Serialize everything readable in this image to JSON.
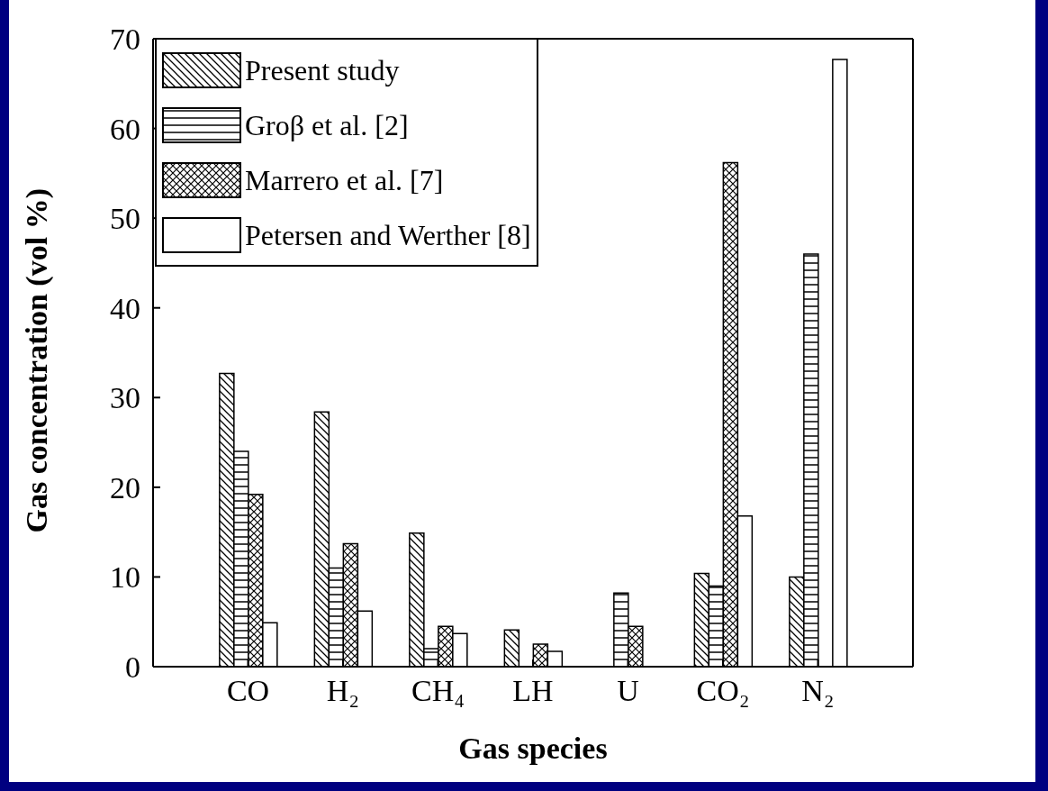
{
  "chart_data": {
    "type": "bar",
    "xlabel": "Gas species",
    "ylabel": "Gas concentration (vol %)",
    "categories": [
      "CO",
      "H₂",
      "CH₄",
      "LH",
      "U",
      "CO₂",
      "N₂"
    ],
    "series": [
      {
        "name": "Present study",
        "color": "#000000",
        "values": [
          32.7,
          28.4,
          14.9,
          4.1,
          null,
          10.4,
          10.0
        ]
      },
      {
        "name": "Groβ et al. [2]",
        "color": "#000000",
        "values": [
          24.0,
          11.0,
          2.0,
          null,
          8.2,
          9.0,
          46.0
        ]
      },
      {
        "name": "Marrero et al. [7]",
        "color": "#000000",
        "values": [
          19.2,
          13.7,
          4.5,
          2.5,
          4.5,
          56.2,
          null
        ]
      },
      {
        "name": "Petersen and Werther [8]",
        "color": "#000000",
        "values": [
          4.9,
          6.2,
          3.7,
          1.7,
          null,
          16.8,
          67.7
        ]
      }
    ],
    "ylim": [
      0,
      70
    ],
    "yticks": [
      0,
      10,
      20,
      30,
      40,
      50,
      60,
      70
    ],
    "grid": false,
    "legend": "top left"
  }
}
